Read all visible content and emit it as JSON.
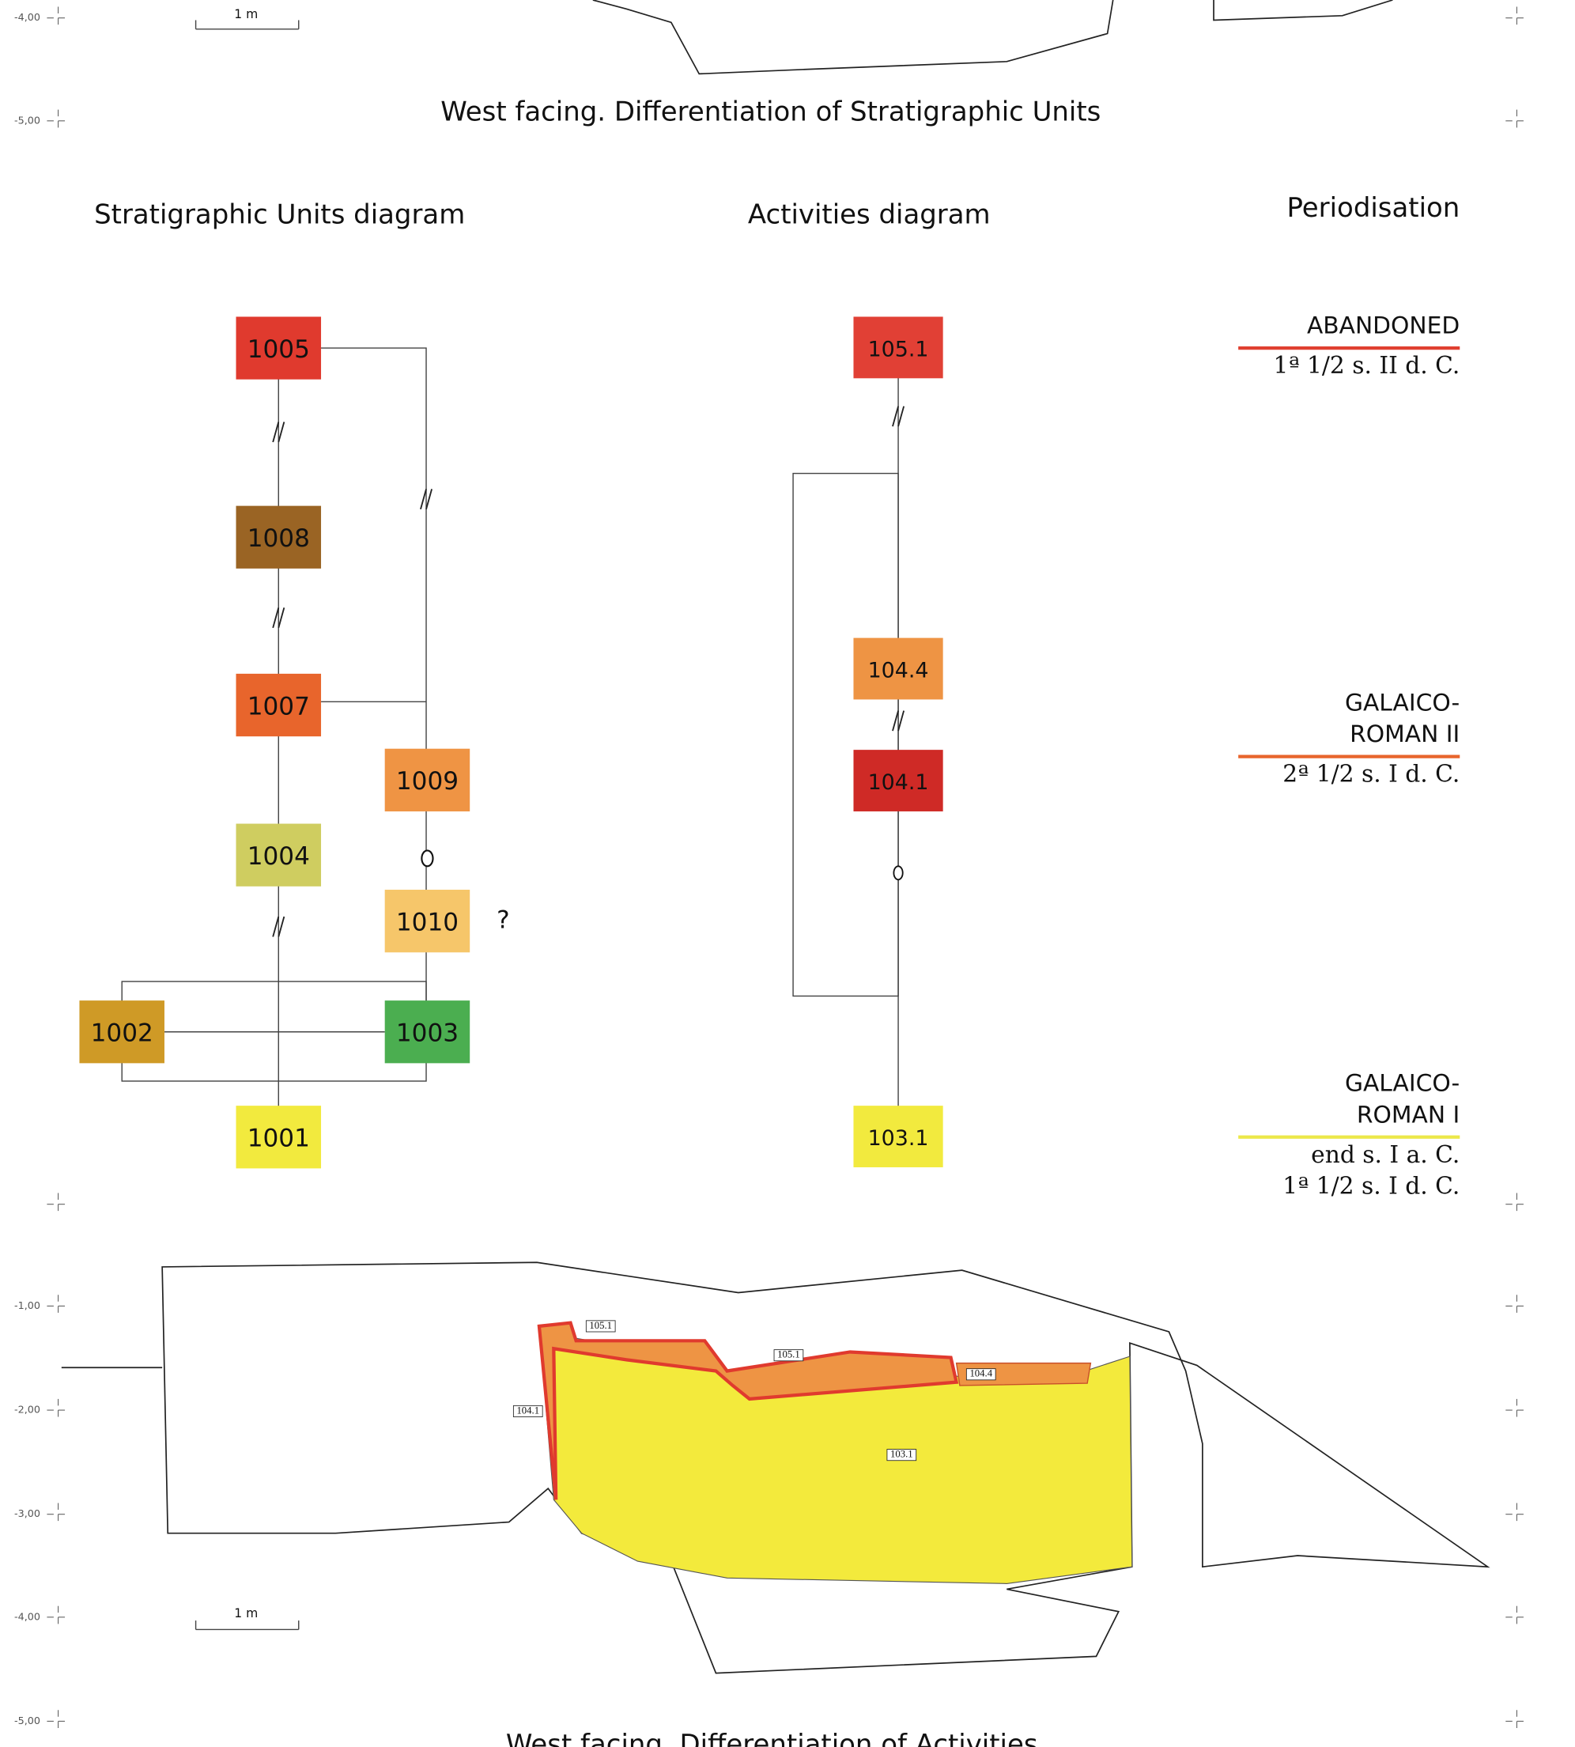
{
  "top_caption": "West facing. Differentiation of Stratigraphic Units",
  "top_scale": "1 m",
  "top_elevations": [
    "-4,00",
    "-5,00"
  ],
  "headings": {
    "su": "Stratigraphic Units diagram",
    "activities": "Activities diagram",
    "periodisation": "Periodisation"
  },
  "su_nodes": [
    {
      "label": "1005",
      "color": "#e03a2e"
    },
    {
      "label": "1008",
      "color": "#9a6424"
    },
    {
      "label": "1007",
      "color": "#e8652c"
    },
    {
      "label": "1009",
      "color": "#ef9444"
    },
    {
      "label": "1004",
      "color": "#cfcd60"
    },
    {
      "label": "1010",
      "color": "#f6c66a"
    },
    {
      "label": "1002",
      "color": "#cf9a26"
    },
    {
      "label": "1003",
      "color": "#4bae50"
    },
    {
      "label": "1001",
      "color": "#f2ea3e"
    }
  ],
  "su_note": "?",
  "activities": [
    {
      "label": "105.1",
      "color": "#e14035"
    },
    {
      "label": "104.4",
      "color": "#ee9444"
    },
    {
      "label": "104.1",
      "color": "#cf2a26"
    },
    {
      "label": "103.1",
      "color": "#f2ea3e"
    }
  ],
  "periods": [
    {
      "name": [
        "ABANDONED"
      ],
      "dates": [
        "1ª 1/2 s. II d. C."
      ],
      "color": "#e04030"
    },
    {
      "name": [
        "GALAICO-",
        "ROMAN II"
      ],
      "dates": [
        "2ª 1/2 s. I d. C."
      ],
      "color": "#e8652c"
    },
    {
      "name": [
        "GALAICO-",
        "ROMAN I"
      ],
      "dates": [
        "end s. I a. C.",
        "1ª 1/2 s. I d. C."
      ],
      "color": "#ece84a"
    }
  ],
  "drawing_tags": [
    "105.1",
    "105.1",
    "104.4",
    "104.1",
    "103.1"
  ],
  "bottom_elevations": [
    "-1,00",
    "-2,00",
    "-3,00",
    "-4,00",
    "-5,00"
  ],
  "bottom_scale": "1 m",
  "bottom_caption": "West facing. Differentiation of Activities"
}
